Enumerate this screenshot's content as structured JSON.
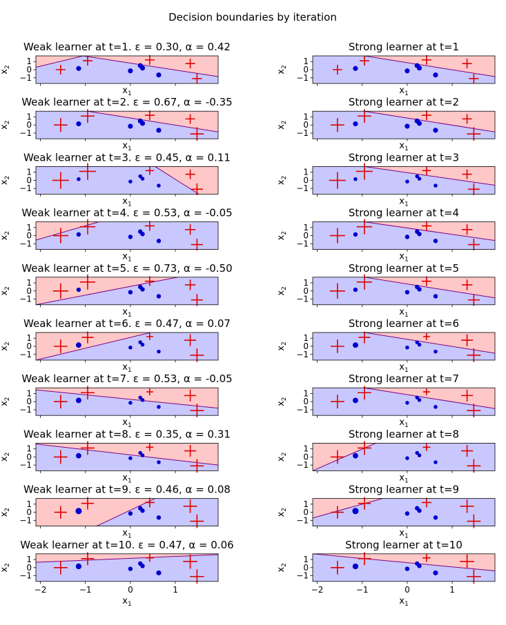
{
  "figure": {
    "suptitle": "Decision boundaries by iteration",
    "x_label_text": "x",
    "x_label_sub": "1",
    "y_label_text": "x",
    "y_label_sub": "2",
    "x_ticks": [
      "−2",
      "−1",
      "0",
      "1"
    ],
    "y_ticks": [
      "1",
      "0",
      "−1"
    ]
  },
  "colors": {
    "negative_region": "#c8c8ff",
    "positive_region": "#ffc8c8",
    "boundary": "#7f007f",
    "circle_class": "#0000cc",
    "plus_class": "#dd0000"
  },
  "chart_data": {
    "type": "scatter",
    "xlim": [
      -2.1,
      1.95
    ],
    "ylim": [
      -1.7,
      1.7
    ],
    "classes": [
      "circle",
      "plus"
    ],
    "points": [
      {
        "x": -1.55,
        "y": 0.0,
        "class": "plus"
      },
      {
        "x": -1.15,
        "y": 0.15,
        "class": "circle"
      },
      {
        "x": -0.95,
        "y": 1.1,
        "class": "plus"
      },
      {
        "x": 0.0,
        "y": -0.15,
        "class": "circle"
      },
      {
        "x": 0.22,
        "y": 0.5,
        "class": "circle"
      },
      {
        "x": 0.27,
        "y": 0.2,
        "class": "circle"
      },
      {
        "x": 0.43,
        "y": 1.2,
        "class": "plus"
      },
      {
        "x": 0.63,
        "y": -0.65,
        "class": "circle"
      },
      {
        "x": 1.33,
        "y": 0.75,
        "class": "plus"
      },
      {
        "x": 1.48,
        "y": -1.1,
        "class": "plus"
      }
    ],
    "weak_learners": [
      {
        "title": "Weak learner at t=1. ε = 0.30, α = 0.42",
        "boundary": [
          [
            -2.1,
            0.3
          ],
          [
            -1.05,
            1.7
          ],
          [
            1.95,
            -0.85
          ]
        ],
        "sizes": [
          1,
          1,
          1,
          1,
          1,
          1,
          1,
          1,
          1,
          1
        ]
      },
      {
        "title": "Weak learner at t=2. ε = 0.67, α = -0.35",
        "boundary": [
          [
            -0.95,
            1.7
          ],
          [
            1.95,
            -0.85
          ]
        ],
        "sizes": [
          2,
          1,
          2,
          1,
          1,
          1,
          1,
          1,
          1,
          2
        ]
      },
      {
        "title": "Weak learner at t=3. ε = 0.45, α = 0.11",
        "boundary": [
          [
            0.55,
            1.7
          ],
          [
            1.52,
            -1.7
          ]
        ],
        "sizes": [
          3,
          0.6,
          3,
          0.6,
          0.6,
          0.6,
          0.8,
          0.6,
          1,
          1.5
        ]
      },
      {
        "title": "Weak learner at t=4. ε = 0.53, α = -0.05",
        "boundary": [
          [
            -2.1,
            -0.55
          ],
          [
            -0.7,
            1.7
          ]
        ],
        "sizes": [
          2.5,
          0.8,
          2.5,
          0.8,
          0.8,
          0.8,
          1,
          0.8,
          1.2,
          1.5
        ]
      },
      {
        "title": "Weak learner at t=5. ε = 0.73, α = -0.50",
        "boundary": [
          [
            -2.1,
            -1.7
          ],
          [
            1.05,
            1.7
          ]
        ],
        "sizes": [
          2.5,
          0.8,
          2.5,
          0.8,
          0.8,
          0.8,
          1,
          0.8,
          1.2,
          1.5
        ]
      },
      {
        "title": "Weak learner at t=6. ε = 0.47, α = 0.07",
        "boundary": [
          [
            -2.1,
            -1.7
          ],
          [
            0.45,
            1.7
          ]
        ],
        "sizes": [
          2,
          1.2,
          1.5,
          0.6,
          0.6,
          0.6,
          0.5,
          0.6,
          1.5,
          2
        ]
      },
      {
        "title": "Weak learner at t=7. ε = 0.53, α = -0.05",
        "boundary": [
          [
            -2.1,
            1.45
          ],
          [
            1.95,
            -0.8
          ]
        ],
        "sizes": [
          2,
          1.2,
          2,
          0.6,
          0.6,
          0.6,
          0.5,
          0.6,
          1.5,
          2
        ]
      },
      {
        "title": "Weak learner at t=8. ε = 0.35, α = 0.31",
        "boundary": [
          [
            -2.1,
            1.6
          ],
          [
            1.95,
            -1.0
          ]
        ],
        "sizes": [
          2,
          1.2,
          2,
          0.6,
          0.6,
          0.6,
          0.6,
          0.6,
          1.5,
          2
        ]
      },
      {
        "title": "Weak learner at t=9. ε = 0.46, α = 0.08",
        "boundary": [
          [
            -0.75,
            -1.7
          ],
          [
            0.55,
            1.7
          ]
        ],
        "sizes": [
          1.7,
          1.6,
          1.7,
          0.8,
          0.8,
          0.8,
          1,
          0.8,
          2,
          2
        ]
      },
      {
        "title": "Weak learner at t=10. ε = 0.47, α = 0.06",
        "boundary": [
          [
            -2.1,
            0.65
          ],
          [
            1.95,
            1.6
          ]
        ],
        "sizes": [
          2,
          1.3,
          1.8,
          0.8,
          0.8,
          0.8,
          0.7,
          1,
          2.2,
          2.2
        ]
      }
    ],
    "strong_learners": [
      {
        "title": "Strong learner at t=1",
        "boundary": [
          [
            -0.95,
            1.7
          ],
          [
            1.95,
            -0.85
          ]
        ],
        "sizes": [
          1,
          1,
          1,
          1,
          1,
          1,
          1,
          1,
          1,
          1
        ]
      },
      {
        "title": "Strong learner at t=2",
        "boundary": [
          [
            -0.95,
            1.7
          ],
          [
            1.95,
            -0.85
          ]
        ],
        "sizes": [
          2,
          1,
          2,
          1,
          1,
          1,
          1,
          1,
          1,
          2
        ]
      },
      {
        "title": "Strong learner at t=3",
        "boundary": [
          [
            -0.95,
            1.7
          ],
          [
            1.95,
            -0.6
          ]
        ],
        "sizes": [
          3,
          0.6,
          3,
          0.6,
          0.6,
          0.6,
          0.8,
          0.6,
          1,
          1.5
        ]
      },
      {
        "title": "Strong learner at t=4",
        "boundary": [
          [
            -0.95,
            1.7
          ],
          [
            1.95,
            -0.6
          ]
        ],
        "sizes": [
          2.5,
          0.8,
          2.5,
          0.8,
          0.8,
          0.8,
          1,
          0.8,
          1.2,
          1.5
        ]
      },
      {
        "title": "Strong learner at t=5",
        "boundary": [
          [
            -0.95,
            1.7
          ],
          [
            1.95,
            -0.85
          ]
        ],
        "sizes": [
          2.5,
          0.8,
          2.5,
          0.8,
          0.8,
          0.8,
          1,
          0.8,
          1.2,
          1.5
        ]
      },
      {
        "title": "Strong learner at t=6",
        "boundary": [
          [
            -0.95,
            1.7
          ],
          [
            1.95,
            -0.85
          ]
        ],
        "sizes": [
          2,
          1.2,
          1.5,
          0.6,
          0.6,
          0.6,
          0.5,
          0.6,
          1.5,
          2
        ]
      },
      {
        "title": "Strong learner at t=7",
        "boundary": [
          [
            -0.95,
            1.7
          ],
          [
            1.95,
            -0.85
          ]
        ],
        "sizes": [
          2,
          1.2,
          2,
          0.6,
          0.6,
          0.6,
          0.5,
          0.6,
          1.5,
          2
        ]
      },
      {
        "title": "Strong learner at t=8",
        "boundary": [
          [
            -2.1,
            -1.7
          ],
          [
            -0.7,
            1.7
          ]
        ],
        "sizes": [
          2,
          1.2,
          2,
          0.6,
          0.6,
          0.6,
          0.6,
          0.6,
          1.5,
          2
        ]
      },
      {
        "title": "Strong learner at t=9",
        "boundary": [
          [
            -2.1,
            -0.7
          ],
          [
            -0.55,
            1.7
          ]
        ],
        "sizes": [
          1.7,
          1.6,
          1.7,
          0.8,
          0.8,
          0.8,
          1,
          0.8,
          2,
          2
        ]
      },
      {
        "title": "Strong learner at t=10",
        "boundary": [
          [
            -2.1,
            1.7
          ],
          [
            1.95,
            -0.4
          ]
        ],
        "sizes": [
          2,
          1.3,
          1.8,
          0.8,
          0.8,
          0.8,
          0.7,
          1,
          2.2,
          2.2
        ]
      }
    ]
  }
}
